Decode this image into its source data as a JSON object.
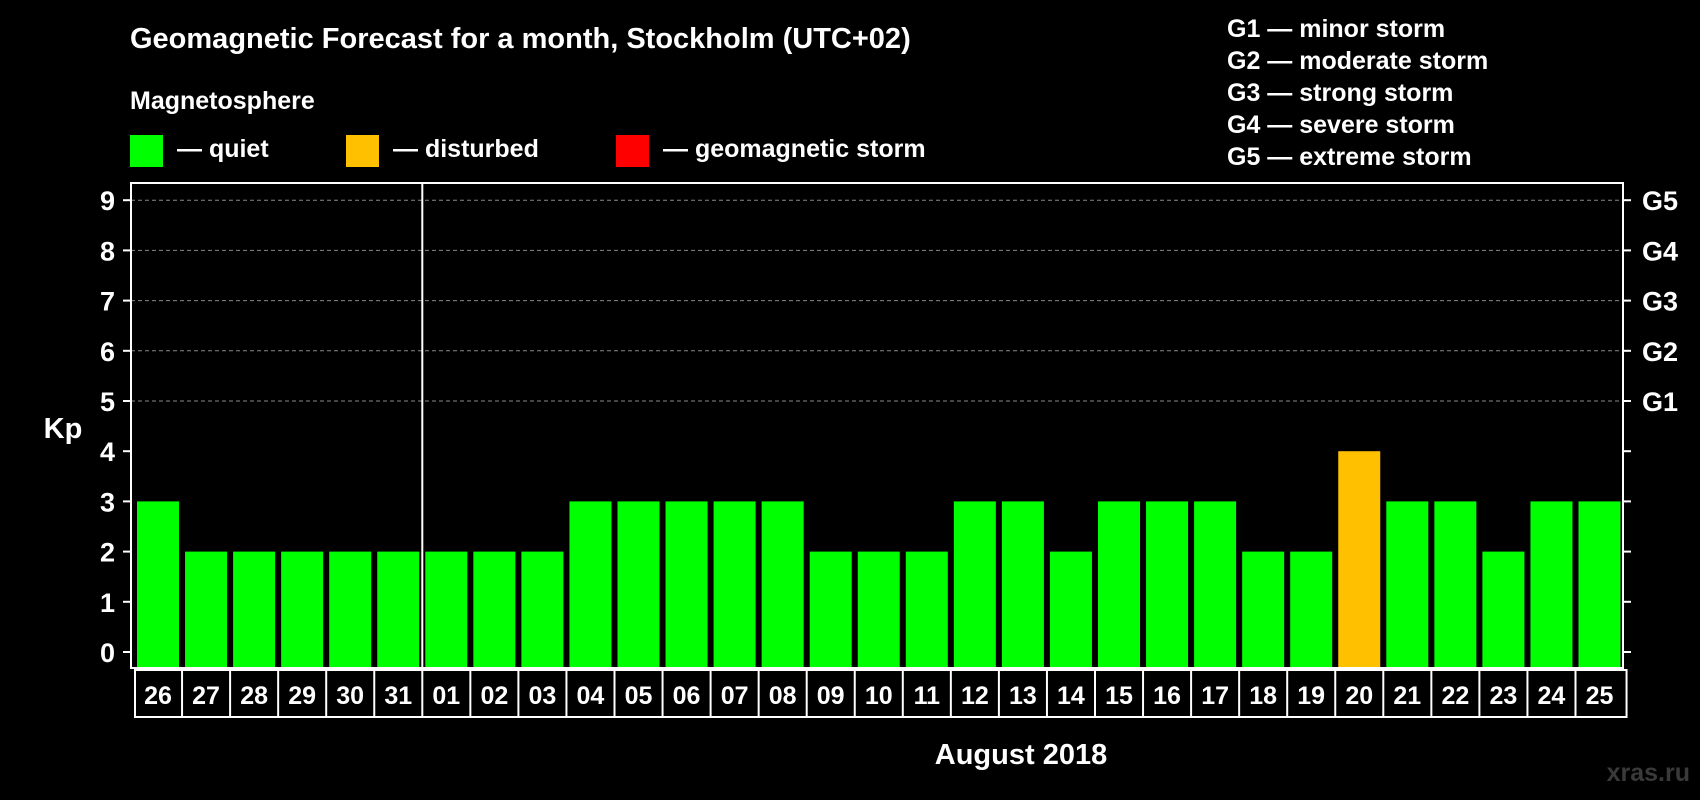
{
  "colors": {
    "background": "#000000",
    "quiet": "#00ff00",
    "disturbed": "#ffc000",
    "storm": "#ff0000",
    "text": "#ffffff",
    "grid": "#888888",
    "watermark": "#3a3a3a"
  },
  "header": {
    "title": "Geomagnetic Forecast for a month, Stockholm (UTC+02)",
    "subtitle": "Magnetosphere"
  },
  "legend": {
    "items": [
      {
        "label": "— quiet",
        "color_key": "quiet"
      },
      {
        "label": "— disturbed",
        "color_key": "disturbed"
      },
      {
        "label": "— geomagnetic storm",
        "color_key": "storm"
      }
    ]
  },
  "storm_scale": [
    "G1 — minor storm",
    "G2 — moderate storm",
    "G3 — strong storm",
    "G4 — severe storm",
    "G5 — extreme storm"
  ],
  "watermark": "xras.ru",
  "chart_data": {
    "type": "bar",
    "title": "Geomagnetic Forecast for a month, Stockholm (UTC+02)",
    "ylabel": "Kp",
    "xlabel": "August 2018",
    "ylim": [
      0,
      9
    ],
    "yticks": [
      "0",
      "1",
      "2",
      "3",
      "4",
      "5",
      "6",
      "7",
      "8",
      "9"
    ],
    "right_axis_labels": [
      {
        "kp": 5,
        "label": "G1"
      },
      {
        "kp": 6,
        "label": "G2"
      },
      {
        "kp": 7,
        "label": "G3"
      },
      {
        "kp": 8,
        "label": "G4"
      },
      {
        "kp": 9,
        "label": "G5"
      }
    ],
    "grid": true,
    "month_separator_after_index": 5,
    "categories": [
      "26",
      "27",
      "28",
      "29",
      "30",
      "31",
      "01",
      "02",
      "03",
      "04",
      "05",
      "06",
      "07",
      "08",
      "09",
      "10",
      "11",
      "12",
      "13",
      "14",
      "15",
      "16",
      "17",
      "18",
      "19",
      "20",
      "21",
      "22",
      "23",
      "24",
      "25"
    ],
    "values": [
      3,
      2,
      2,
      2,
      2,
      2,
      2,
      2,
      2,
      3,
      3,
      3,
      3,
      3,
      2,
      2,
      2,
      3,
      3,
      2,
      3,
      3,
      3,
      2,
      2,
      4,
      3,
      3,
      2,
      3,
      3
    ],
    "status": [
      "quiet",
      "quiet",
      "quiet",
      "quiet",
      "quiet",
      "quiet",
      "quiet",
      "quiet",
      "quiet",
      "quiet",
      "quiet",
      "quiet",
      "quiet",
      "quiet",
      "quiet",
      "quiet",
      "quiet",
      "quiet",
      "quiet",
      "quiet",
      "quiet",
      "quiet",
      "quiet",
      "quiet",
      "quiet",
      "disturbed",
      "quiet",
      "quiet",
      "quiet",
      "quiet",
      "quiet"
    ]
  }
}
